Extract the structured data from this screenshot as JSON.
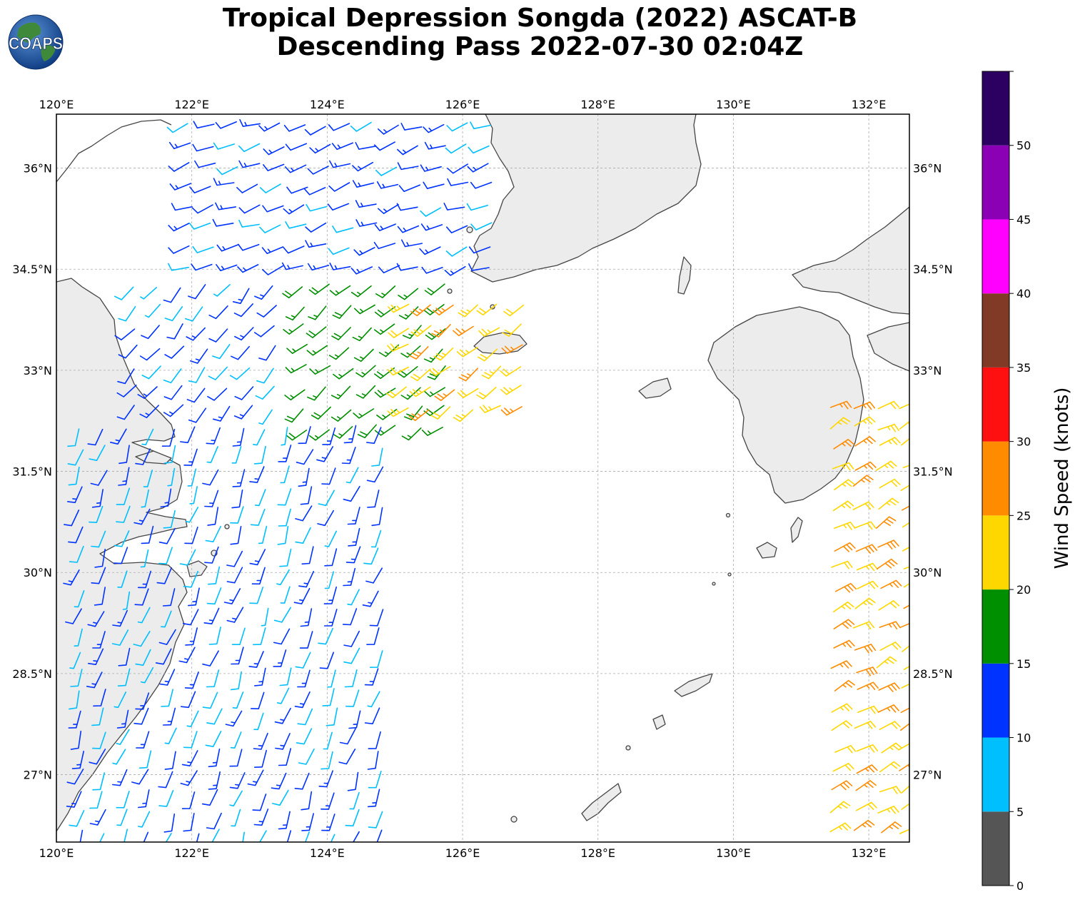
{
  "title": {
    "line1": "Tropical Depression Songda (2022) ASCAT-B",
    "line2": "Descending Pass 2022-07-30 02:04Z"
  },
  "logo": {
    "text": "COAPS",
    "ocean_color": "#1f5aa8",
    "land_color": "#3f8a3a"
  },
  "map": {
    "lon_range": [
      120.0,
      132.6
    ],
    "lat_range": [
      26.0,
      36.8
    ],
    "lon_ticks": [
      "120°E",
      "122°E",
      "124°E",
      "126°E",
      "128°E",
      "130°E",
      "132°E"
    ],
    "lat_ticks": [
      "27°N",
      "28.5°N",
      "30°N",
      "31.5°N",
      "33°N",
      "34.5°N",
      "36°N"
    ],
    "gridlines": true,
    "land_fill": "#eeeeee",
    "coast_color": "#444444"
  },
  "colorbar": {
    "label": "Wind Speed (knots)",
    "ticks": [
      "0",
      "5",
      "10",
      "15",
      "20",
      "25",
      "30",
      "35",
      "40",
      "45",
      "50"
    ],
    "bins": [
      {
        "from": 0,
        "to": 5,
        "color": "#555555"
      },
      {
        "from": 5,
        "to": 10,
        "color": "#00bfff"
      },
      {
        "from": 10,
        "to": 15,
        "color": "#0033ff"
      },
      {
        "from": 15,
        "to": 20,
        "color": "#008f00"
      },
      {
        "from": 20,
        "to": 25,
        "color": "#ffd700"
      },
      {
        "from": 25,
        "to": 30,
        "color": "#ff8c00"
      },
      {
        "from": 30,
        "to": 35,
        "color": "#ff1010"
      },
      {
        "from": 35,
        "to": 40,
        "color": "#803a25"
      },
      {
        "from": 40,
        "to": 45,
        "color": "#ff00ff"
      },
      {
        "from": 45,
        "to": 50,
        "color": "#8b00b5"
      },
      {
        "from": 50,
        "to": 55,
        "color": "#2b0060"
      }
    ]
  },
  "wind_field": {
    "units": "knots",
    "regions": [
      {
        "name": "north-swath",
        "lon": [
          121.8,
          126.5
        ],
        "lat": [
          34.4,
          36.8
        ],
        "speed": [
          8,
          14
        ],
        "dir_from": 250
      },
      {
        "name": "yellow-sea-south",
        "lon": [
          121.0,
          123.5
        ],
        "lat": [
          32.3,
          34.4
        ],
        "speed": [
          7,
          14
        ],
        "dir_from": 220
      },
      {
        "name": "green-band",
        "lon": [
          123.5,
          125.8
        ],
        "lat": [
          32.0,
          34.3
        ],
        "speed": [
          15,
          19
        ],
        "dir_from": 230
      },
      {
        "name": "gold-band",
        "lon": [
          125.0,
          127.2
        ],
        "lat": [
          32.3,
          34.2
        ],
        "speed": [
          20,
          27
        ],
        "dir_from": 235
      },
      {
        "name": "main-swath",
        "lon": [
          120.2,
          125.0
        ],
        "lat": [
          26.0,
          32.3
        ],
        "speed": [
          6,
          15
        ],
        "dir_from": 200
      },
      {
        "name": "east-swath",
        "lon": [
          131.3,
          132.6
        ],
        "lat": [
          26.0,
          32.5
        ],
        "speed": [
          20,
          29
        ],
        "dir_from": 60
      }
    ]
  }
}
